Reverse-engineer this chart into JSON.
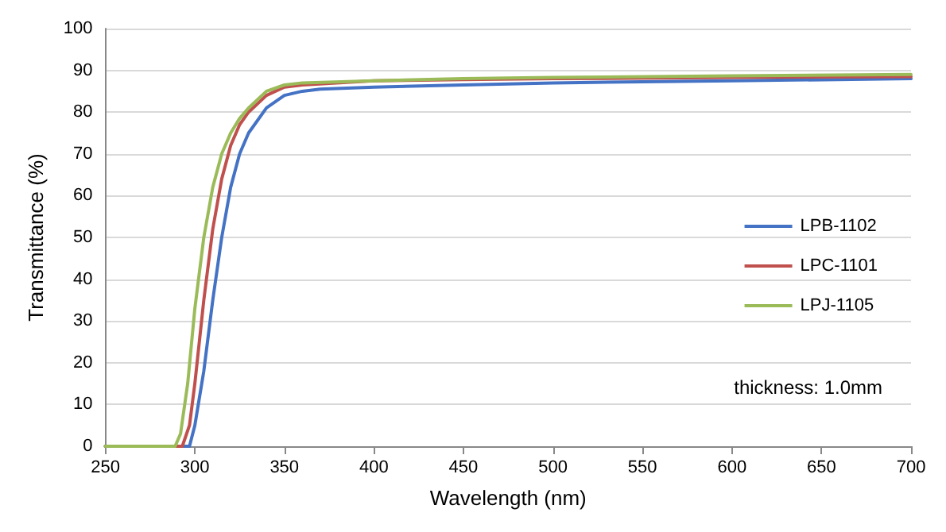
{
  "chart_data": {
    "type": "line",
    "xlabel": "Wavelength (nm)",
    "ylabel": "Transmittance (%)",
    "xlim": [
      250,
      700
    ],
    "xticks": [
      250,
      300,
      350,
      400,
      450,
      500,
      550,
      600,
      650,
      700
    ],
    "ylim": [
      0,
      100
    ],
    "yticks": [
      0,
      10,
      20,
      30,
      40,
      50,
      60,
      70,
      80,
      90,
      100
    ],
    "grid": "y",
    "legend": "right",
    "marker": "none",
    "line_style": "solid",
    "annotations": [
      "thickness: 1.0mm"
    ],
    "series": [
      {
        "name": "LPB-1102",
        "color": "#4472c4",
        "x": [
          250,
          290,
          297,
          300,
          305,
          310,
          315,
          320,
          325,
          330,
          340,
          350,
          360,
          370,
          400,
          450,
          500,
          600,
          700
        ],
        "values": [
          0,
          0,
          0,
          5,
          18,
          35,
          50,
          62,
          70,
          75,
          81,
          84,
          85,
          85.5,
          86,
          86.5,
          87,
          87.5,
          88
        ]
      },
      {
        "name": "LPC-1101",
        "color": "#c0504d",
        "x": [
          250,
          290,
          293,
          297,
          300,
          305,
          310,
          315,
          320,
          325,
          330,
          340,
          350,
          360,
          400,
          450,
          500,
          600,
          700
        ],
        "values": [
          0,
          0,
          0,
          5,
          15,
          35,
          52,
          64,
          72,
          77,
          80,
          84,
          86,
          86.5,
          87.5,
          87.8,
          88,
          88.3,
          88.5
        ]
      },
      {
        "name": "LPJ-1105",
        "color": "#9bbb59",
        "x": [
          250,
          289,
          292,
          296,
          300,
          305,
          310,
          315,
          320,
          325,
          330,
          340,
          350,
          360,
          400,
          450,
          500,
          600,
          700
        ],
        "values": [
          0,
          0,
          3,
          15,
          33,
          50,
          62,
          70,
          75,
          78.5,
          81,
          85,
          86.5,
          87,
          87.5,
          88,
          88.3,
          88.7,
          89
        ]
      }
    ]
  }
}
